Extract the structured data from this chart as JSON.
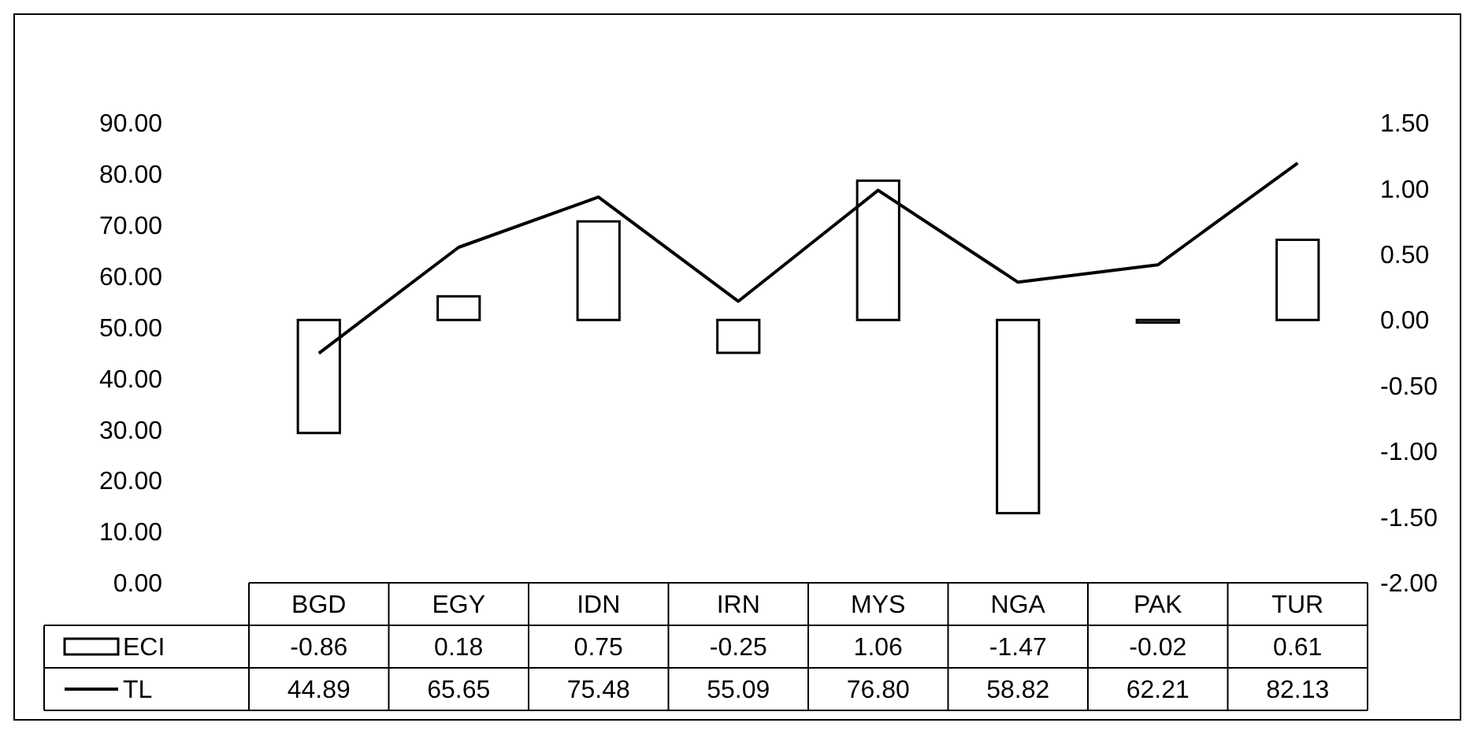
{
  "chart_data": {
    "type": "bar",
    "categories": [
      "BGD",
      "EGY",
      "IDN",
      "IRN",
      "MYS",
      "NGA",
      "PAK",
      "TUR"
    ],
    "series": [
      {
        "name": "ECI",
        "axis": "y2",
        "color": "#ffffff",
        "values": [
          -0.86,
          0.18,
          0.75,
          -0.25,
          1.06,
          -1.47,
          -0.02,
          0.61
        ],
        "value_labels": [
          "-0.86",
          "0.18",
          "0.75",
          "-0.25",
          "1.06",
          "-1.47",
          "-0.02",
          "0.61"
        ]
      },
      {
        "name": "TL",
        "type": "line",
        "color": "#000000",
        "values": [
          44.89,
          65.65,
          75.48,
          55.09,
          76.8,
          58.82,
          62.21,
          82.13
        ],
        "value_labels": [
          "44.89",
          "65.65",
          "75.48",
          "55.09",
          "76.80",
          "58.82",
          "62.21",
          "82.13"
        ]
      }
    ],
    "ylim": [
      0,
      90
    ],
    "yticks": [
      {
        "value": 0,
        "label": "0.00"
      },
      {
        "value": 10,
        "label": "10.00"
      },
      {
        "value": 20,
        "label": "20.00"
      },
      {
        "value": 30,
        "label": "30.00"
      },
      {
        "value": 40,
        "label": "40.00"
      },
      {
        "value": 50,
        "label": "50.00"
      },
      {
        "value": 60,
        "label": "60.00"
      },
      {
        "value": 70,
        "label": "70.00"
      },
      {
        "value": 80,
        "label": "80.00"
      },
      {
        "value": 90,
        "label": "90.00"
      }
    ],
    "y2lim": [
      -2,
      1.5
    ],
    "y2ticks": [
      {
        "value": -2,
        "label": "-2.00"
      },
      {
        "value": -1.5,
        "label": "-1.50"
      },
      {
        "value": -1,
        "label": "-1.00"
      },
      {
        "value": -0.5,
        "label": "-0.50"
      },
      {
        "value": 0,
        "label": "0.00"
      },
      {
        "value": 0.5,
        "label": "0.50"
      },
      {
        "value": 1,
        "label": "1.00"
      },
      {
        "value": 1.5,
        "label": "1.50"
      }
    ],
    "grid": false,
    "legend": "bottom",
    "marker": "none",
    "line_style": "solid"
  }
}
